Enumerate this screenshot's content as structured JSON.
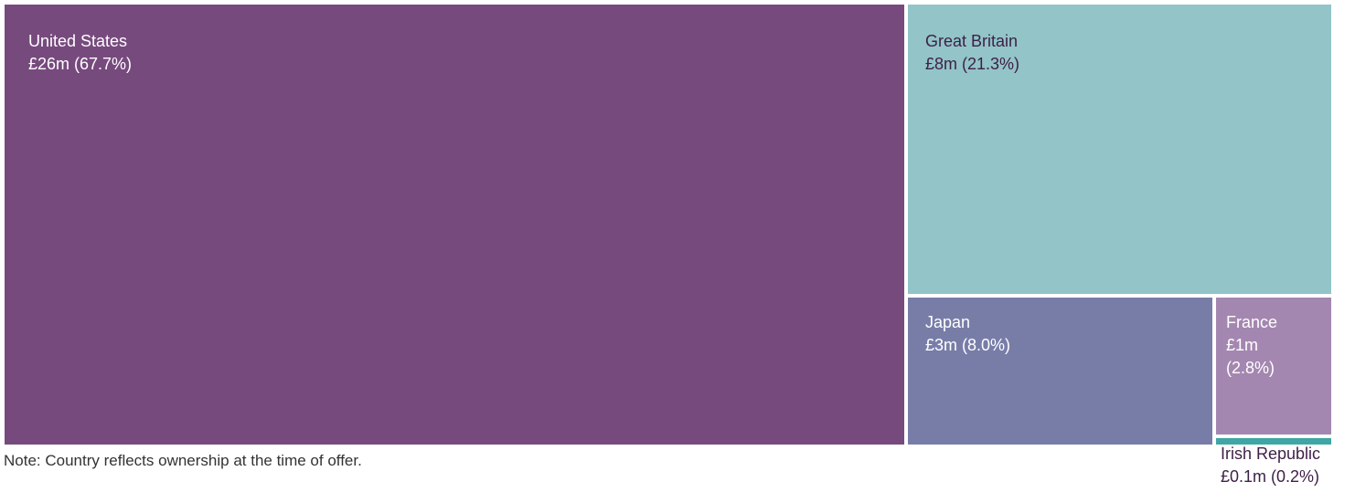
{
  "chart_data": {
    "type": "treemap",
    "title": "",
    "items": [
      {
        "name": "United States",
        "value_label": "£26m (67.7%)",
        "share": 67.7,
        "color": "#774a7e",
        "text_color": "#ffffff"
      },
      {
        "name": "Great Britain",
        "value_label": "£8m (21.3%)",
        "share": 21.3,
        "color": "#92c4c8",
        "text_color": "#3e1f47"
      },
      {
        "name": "Japan",
        "value_label": "£3m (8.0%)",
        "share": 8.0,
        "color": "#787da8",
        "text_color": "#ffffff"
      },
      {
        "name": "France",
        "value_label": "£1m (2.8%)",
        "value_lines": [
          "£1m",
          "(2.8%)"
        ],
        "share": 2.8,
        "color": "#a487b0",
        "text_color": "#ffffff"
      },
      {
        "name": "Irish Republic",
        "value_label": "£0.1m (0.2%)",
        "share": 0.2,
        "color": "#3ea6a4",
        "text_color": "#3e1f47"
      }
    ]
  },
  "note": "Note: Country reflects ownership at the time of offer."
}
